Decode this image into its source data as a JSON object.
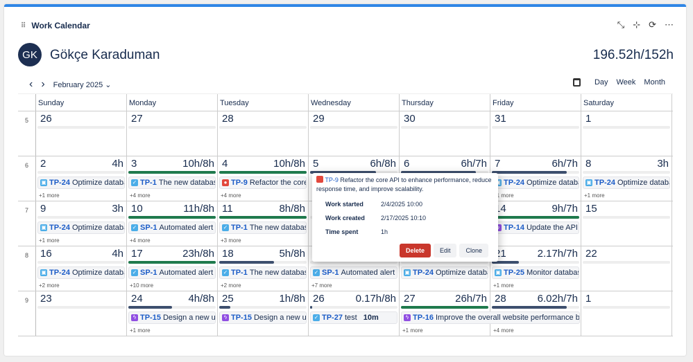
{
  "widget": {
    "title": "Work Calendar"
  },
  "user": {
    "initials": "GK",
    "name": "Gökçe Karaduman",
    "total": "196.52h/152h"
  },
  "nav": {
    "month": "February 2025",
    "views": [
      "Day",
      "Week",
      "Month"
    ]
  },
  "colors": {
    "accent": "#2f86e6",
    "over": "#1f7a4d",
    "under": "#3d4f6e",
    "delete": "#c9372c"
  },
  "weekdays": [
    "Sunday",
    "Monday",
    "Tuesday",
    "Wednesday",
    "Thursday",
    "Friday",
    "Saturday"
  ],
  "weeks": [
    {
      "num": "5",
      "days": [
        {
          "d": "26"
        },
        {
          "d": "27"
        },
        {
          "d": "28"
        },
        {
          "d": "29"
        },
        {
          "d": "30"
        },
        {
          "d": "31"
        },
        {
          "d": "1"
        }
      ]
    },
    {
      "num": "6",
      "days": [
        {
          "d": "2",
          "h": "4h",
          "items": [
            {
              "icon": "subtask",
              "key": "TP-24",
              "title": "Optimize databa"
            }
          ],
          "more": "+1 more"
        },
        {
          "d": "3",
          "h": "10h/8h",
          "p": 1,
          "items": [
            {
              "icon": "task",
              "key": "TP-1",
              "title": "The new database"
            }
          ],
          "more": "+4 more"
        },
        {
          "d": "4",
          "h": "10h/8h",
          "p": 1,
          "items": [
            {
              "icon": "bug",
              "key": "TP-9",
              "title": "Refactor the core A"
            }
          ],
          "more": "+4 more"
        },
        {
          "d": "5",
          "h": "6h/8h",
          "p": 0.75
        },
        {
          "d": "6",
          "h": "6h/7h",
          "p": 0.857
        },
        {
          "d": "7",
          "h": "6h/7h",
          "p": 0.857,
          "items": [
            {
              "icon": "subtask",
              "key": "TP-24",
              "title": "Optimize databa"
            }
          ],
          "more": "+1 more"
        },
        {
          "d": "8",
          "h": "3h",
          "items": [
            {
              "icon": "subtask",
              "key": "TP-24",
              "title": "Optimize databa"
            }
          ],
          "more": "+1 more"
        }
      ]
    },
    {
      "num": "7",
      "days": [
        {
          "d": "9",
          "h": "3h",
          "items": [
            {
              "icon": "subtask",
              "key": "TP-24",
              "title": "Optimize databa"
            }
          ],
          "more": "+1 more"
        },
        {
          "d": "10",
          "h": "11h/8h",
          "p": 1,
          "items": [
            {
              "icon": "task",
              "key": "SP-1",
              "title": "Automated alert sy"
            }
          ],
          "more": "+4 more"
        },
        {
          "d": "11",
          "h": "8h/8h",
          "p": 1,
          "items": [
            {
              "icon": "task",
              "key": "TP-1",
              "title": "The new database"
            }
          ],
          "more": "+3 more"
        },
        {
          "d": ""
        },
        {
          "d": ""
        },
        {
          "d": "14",
          "h": "9h/7h",
          "p": 1,
          "items": [
            {
              "icon": "epic",
              "key": "TP-14",
              "title": "Update the API e"
            }
          ]
        },
        {
          "d": "15"
        }
      ]
    },
    {
      "num": "8",
      "days": [
        {
          "d": "16",
          "h": "4h",
          "items": [
            {
              "icon": "subtask",
              "key": "TP-24",
              "title": "Optimize databa"
            }
          ],
          "more": "+2 more"
        },
        {
          "d": "17",
          "h": "23h/8h",
          "p": 1,
          "items": [
            {
              "icon": "task",
              "key": "SP-1",
              "title": "Automated alert sy"
            }
          ],
          "more": "+10 more"
        },
        {
          "d": "18",
          "h": "5h/8h",
          "p": 0.625,
          "items": [
            {
              "icon": "task",
              "key": "TP-1",
              "title": "The new database"
            }
          ],
          "more": "+2 more"
        },
        {
          "d": "",
          "items": [
            {
              "icon": "task",
              "key": "SP-1",
              "title": "Automated alert sy"
            }
          ],
          "more": "+7 more"
        },
        {
          "d": "",
          "items": [
            {
              "icon": "subtask",
              "key": "TP-24",
              "title": "Optimize databa"
            }
          ]
        },
        {
          "d": "21",
          "h": "2.17h/7h",
          "p": 0.31,
          "items": [
            {
              "icon": "subtask",
              "key": "TP-25",
              "title": "Monitor databas"
            }
          ],
          "more": "+1 more"
        },
        {
          "d": "22"
        }
      ]
    },
    {
      "num": "9",
      "days": [
        {
          "d": "23"
        },
        {
          "d": "24",
          "h": "4h/8h",
          "p": 0.5,
          "items": [
            {
              "icon": "epic",
              "key": "TP-15",
              "title": "Design a new use"
            }
          ],
          "more": "+1 more"
        },
        {
          "d": "25",
          "h": "1h/8h",
          "p": 0.125,
          "items": [
            {
              "icon": "epic",
              "key": "TP-15",
              "title": "Design a new use"
            }
          ]
        },
        {
          "d": "26",
          "h": "0.17h/8h",
          "p": 0.02,
          "items": [
            {
              "icon": "task",
              "key": "TP-27",
              "title": "test",
              "extra": "10m"
            }
          ]
        },
        {
          "d": "27",
          "h": "26h/7h",
          "p": 1,
          "items": [
            {
              "icon": "epic",
              "key": "TP-16",
              "title": "Improve the overall website performance by c",
              "wide": true
            }
          ],
          "more": "+1 more"
        },
        {
          "d": "28",
          "h": "6.02h/7h",
          "p": 0.86,
          "more": "+4 more"
        },
        {
          "d": "1"
        }
      ]
    }
  ],
  "popup": {
    "key": "TP-9",
    "summary": "Refactor the core API to enhance performance, reduce response time, and improve scalability.",
    "rows": [
      {
        "label": "Work started",
        "value": "2/4/2025 10:00"
      },
      {
        "label": "Work created",
        "value": "2/17/2025 10:10"
      },
      {
        "label": "Time spent",
        "value": "1h"
      }
    ],
    "delete": "Delete",
    "edit": "Edit",
    "clone": "Clone"
  }
}
